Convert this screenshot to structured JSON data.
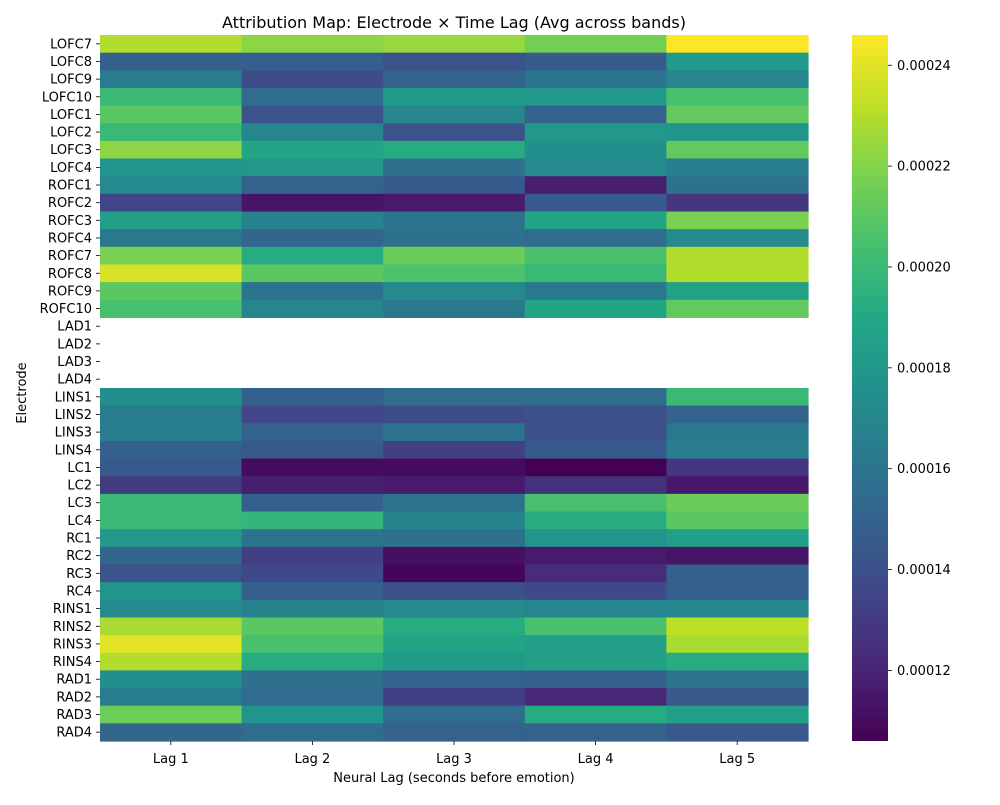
{
  "chart_data": {
    "type": "heatmap",
    "title": "Attribution Map: Electrode × Time Lag (Avg across bands)",
    "xlabel": "Neural Lag (seconds before emotion)",
    "ylabel": "Electrode",
    "x_categories": [
      "Lag 1",
      "Lag 2",
      "Lag 3",
      "Lag 4",
      "Lag 5"
    ],
    "y_categories": [
      "LOFC7",
      "LOFC8",
      "LOFC9",
      "LOFC10",
      "LOFC1",
      "LOFC2",
      "LOFC3",
      "LOFC4",
      "ROFC1",
      "ROFC2",
      "ROFC3",
      "ROFC4",
      "ROFC7",
      "ROFC8",
      "ROFC9",
      "ROFC10",
      "LAD1",
      "LAD2",
      "LAD3",
      "LAD4",
      "LINS1",
      "LINS2",
      "LINS3",
      "LINS4",
      "LC1",
      "LC2",
      "LC3",
      "LC4",
      "RC1",
      "RC2",
      "RC3",
      "RC4",
      "RINS1",
      "RINS2",
      "RINS3",
      "RINS4",
      "RAD1",
      "RAD2",
      "RAD3",
      "RAD4"
    ],
    "values": [
      [
        0.00023,
        0.000222,
        0.000224,
        0.000216,
        0.000246
      ],
      [
        0.000148,
        0.000148,
        0.000142,
        0.000146,
        0.000182
      ],
      [
        0.000165,
        0.000138,
        0.00015,
        0.00016,
        0.00017
      ],
      [
        0.0002,
        0.000155,
        0.000182,
        0.00018,
        0.000205
      ],
      [
        0.00021,
        0.000142,
        0.00017,
        0.00015,
        0.000212
      ],
      [
        0.0002,
        0.00017,
        0.000142,
        0.00018,
        0.000178
      ],
      [
        0.000222,
        0.000188,
        0.000192,
        0.000175,
        0.000212
      ],
      [
        0.000178,
        0.00018,
        0.000158,
        0.000172,
        0.000165
      ],
      [
        0.000172,
        0.00015,
        0.000145,
        0.000118,
        0.000158
      ],
      [
        0.000135,
        0.000114,
        0.000116,
        0.000145,
        0.000128
      ],
      [
        0.000185,
        0.000168,
        0.00016,
        0.000188,
        0.000218
      ],
      [
        0.000162,
        0.000152,
        0.000158,
        0.000155,
        0.000172
      ],
      [
        0.000218,
        0.000192,
        0.000214,
        0.000205,
        0.00023
      ],
      [
        0.000238,
        0.00021,
        0.000206,
        0.0002,
        0.00023
      ],
      [
        0.00021,
        0.00016,
        0.000172,
        0.000162,
        0.000186
      ],
      [
        0.000205,
        0.00017,
        0.000162,
        0.000188,
        0.000212
      ],
      [
        null,
        null,
        null,
        null,
        null
      ],
      [
        null,
        null,
        null,
        null,
        null
      ],
      [
        null,
        null,
        null,
        null,
        null
      ],
      [
        null,
        null,
        null,
        null,
        null
      ],
      [
        0.000175,
        0.000148,
        0.000155,
        0.000155,
        0.0002
      ],
      [
        0.000165,
        0.000135,
        0.000138,
        0.00014,
        0.00015
      ],
      [
        0.000165,
        0.00015,
        0.00016,
        0.00014,
        0.000162
      ],
      [
        0.000148,
        0.000145,
        0.000132,
        0.000145,
        0.000165
      ],
      [
        0.000145,
        0.00011,
        0.00011,
        0.000106,
        0.000128
      ],
      [
        0.00013,
        0.000118,
        0.000116,
        0.000126,
        0.000115
      ],
      [
        0.0002,
        0.000148,
        0.00016,
        0.000205,
        0.000214
      ],
      [
        0.0002,
        0.000198,
        0.000168,
        0.000192,
        0.00021
      ],
      [
        0.00018,
        0.00016,
        0.000158,
        0.000178,
        0.000185
      ],
      [
        0.000152,
        0.000132,
        0.000112,
        0.000116,
        0.000114
      ],
      [
        0.000142,
        0.000136,
        0.000108,
        0.000124,
        0.000148
      ],
      [
        0.000178,
        0.000148,
        0.00014,
        0.000136,
        0.000148
      ],
      [
        0.000172,
        0.000168,
        0.000172,
        0.00017,
        0.00017
      ],
      [
        0.000228,
        0.00021,
        0.000192,
        0.000205,
        0.000232
      ],
      [
        0.00024,
        0.000205,
        0.000188,
        0.000185,
        0.000228
      ],
      [
        0.00023,
        0.000192,
        0.000182,
        0.000185,
        0.000192
      ],
      [
        0.000175,
        0.000158,
        0.00015,
        0.000148,
        0.00016
      ],
      [
        0.000165,
        0.000155,
        0.000132,
        0.000122,
        0.000145
      ],
      [
        0.000215,
        0.000178,
        0.000155,
        0.000192,
        0.000185
      ],
      [
        0.000152,
        0.000155,
        0.00015,
        0.00015,
        0.000145
      ]
    ],
    "colorscale": "viridis",
    "colorbar": {
      "range": [
        0.000106,
        0.000246
      ],
      "ticks": [
        0.00012,
        0.00014,
        0.00016,
        0.00018,
        0.0002,
        0.00022,
        0.00024
      ],
      "tick_labels": [
        "0.00012",
        "0.00014",
        "0.00016",
        "0.00018",
        "0.00020",
        "0.00022",
        "0.00024"
      ]
    },
    "missing_rows_note_color": "#ffffff",
    "grid": false,
    "legend": "colorbar-right"
  }
}
